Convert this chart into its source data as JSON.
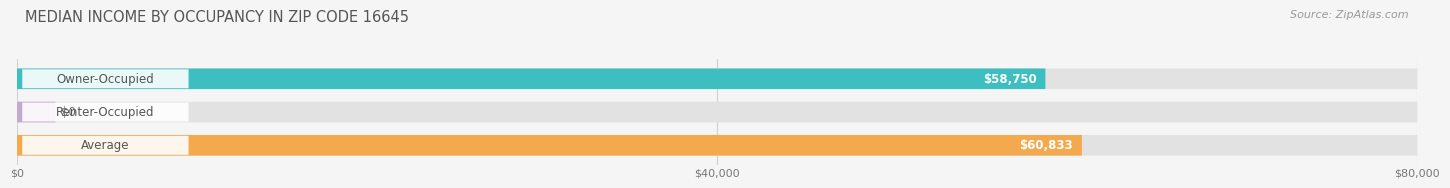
{
  "title": "MEDIAN INCOME BY OCCUPANCY IN ZIP CODE 16645",
  "source": "Source: ZipAtlas.com",
  "categories": [
    "Owner-Occupied",
    "Renter-Occupied",
    "Average"
  ],
  "values": [
    58750,
    0,
    60833
  ],
  "bar_colors": [
    "#3dbec0",
    "#c4a8d0",
    "#f5a94e"
  ],
  "bar_bg_color": "#e2e2e2",
  "label_values": [
    "$58,750",
    "$0",
    "$60,833"
  ],
  "xlim": [
    0,
    80000
  ],
  "xticks": [
    0,
    40000,
    80000
  ],
  "xtick_labels": [
    "$0",
    "$40,000",
    "$80,000"
  ],
  "title_fontsize": 10.5,
  "source_fontsize": 8,
  "bar_label_fontsize": 8.5,
  "cat_label_fontsize": 8.5,
  "value_label_fontsize": 8.5,
  "bar_height": 0.62,
  "background_color": "#f5f5f5",
  "grid_color": "#d0d0d0",
  "text_color": "#555555",
  "value_text_color_inside": "#ffffff",
  "value_text_color_outside": "#666666"
}
